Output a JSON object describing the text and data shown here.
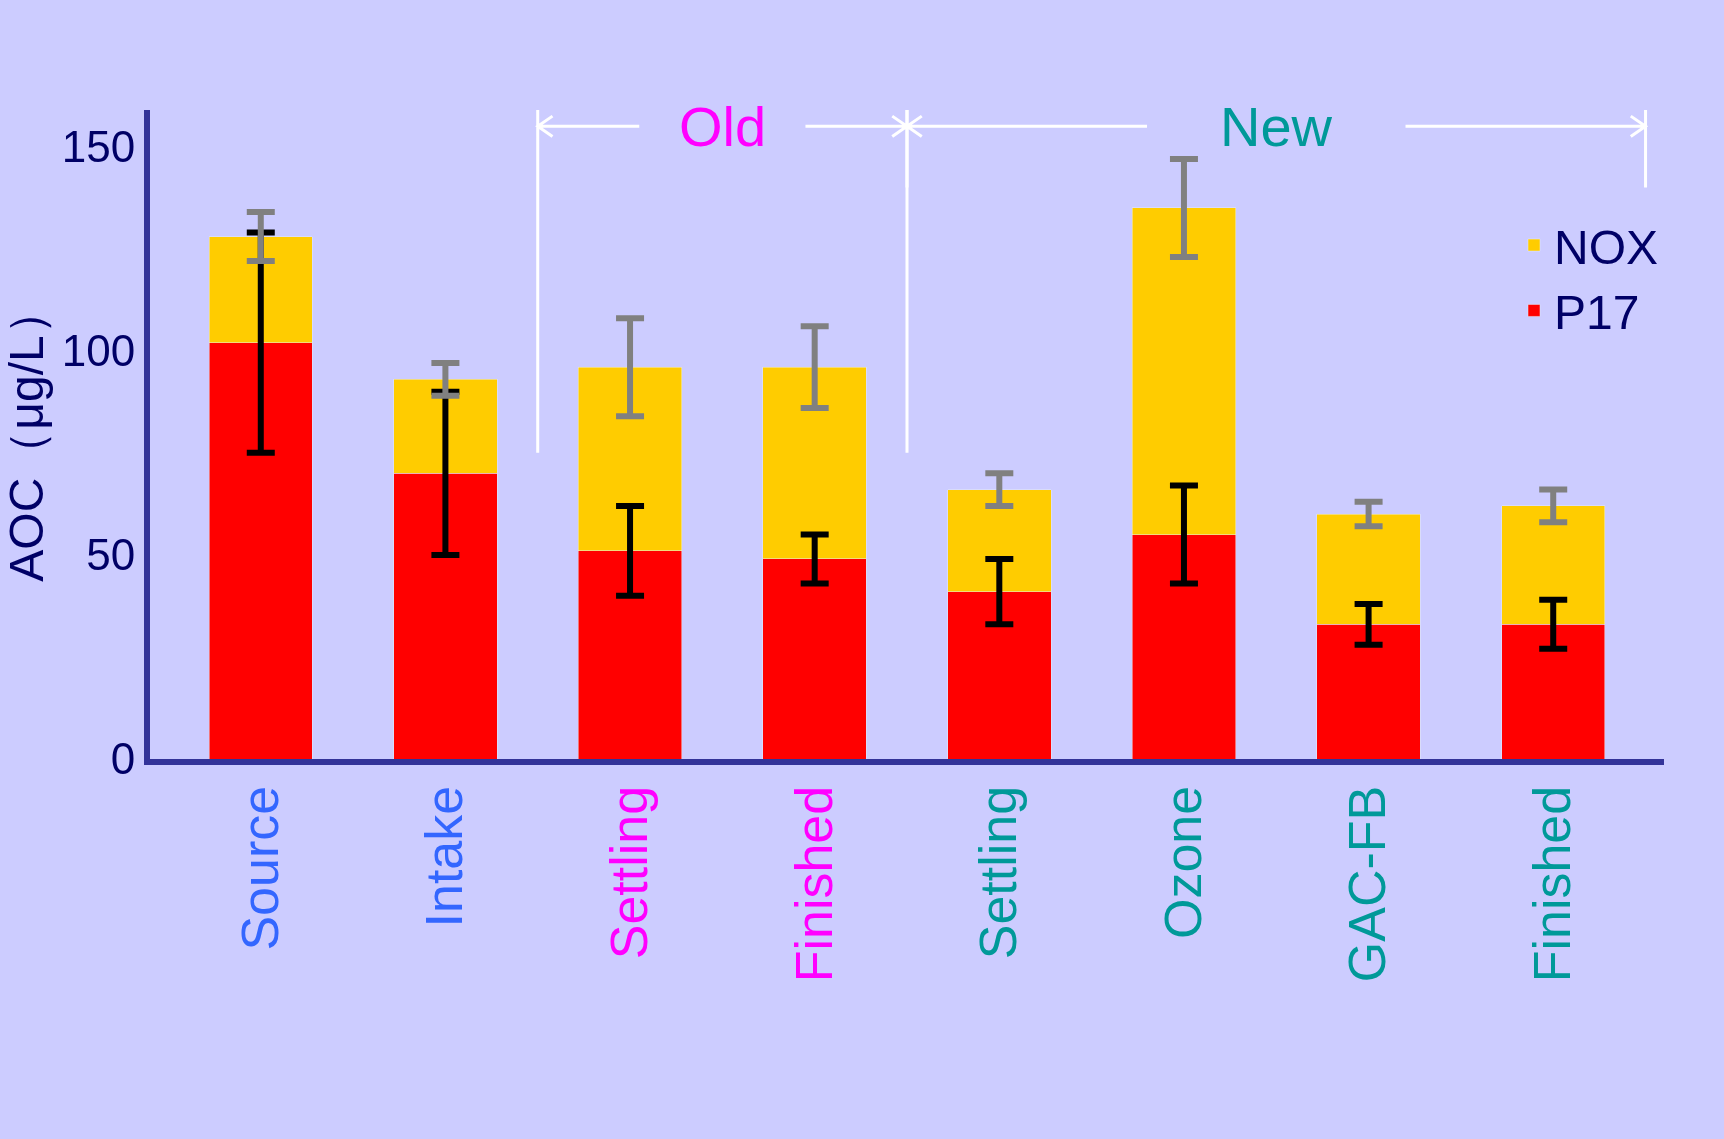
{
  "chart_data": {
    "type": "bar",
    "stacked": true,
    "ylabel": "AOC（μg/L）",
    "categories": [
      "Source",
      "Intake",
      "Settling",
      "Finished",
      "Settling",
      "Ozone",
      "GAC-FB",
      "Finished"
    ],
    "series": [
      {
        "name": "P17",
        "color": "#ff0000",
        "values": [
          102,
          70,
          51,
          49,
          41,
          55,
          33,
          33
        ],
        "errors": [
          27,
          20,
          11,
          6,
          8,
          12,
          5,
          6
        ]
      },
      {
        "name": "NOX",
        "color": "#ffcc00",
        "values": [
          26,
          23,
          45,
          47,
          25,
          80,
          27,
          29
        ],
        "errors": [
          6,
          4,
          12,
          10,
          4,
          12,
          3,
          4
        ]
      }
    ],
    "annotations": [
      "Old",
      "New"
    ],
    "ylim": [
      0,
      159
    ],
    "yticks": [
      0,
      50,
      100,
      150
    ],
    "grid": false,
    "legend": "top right"
  }
}
